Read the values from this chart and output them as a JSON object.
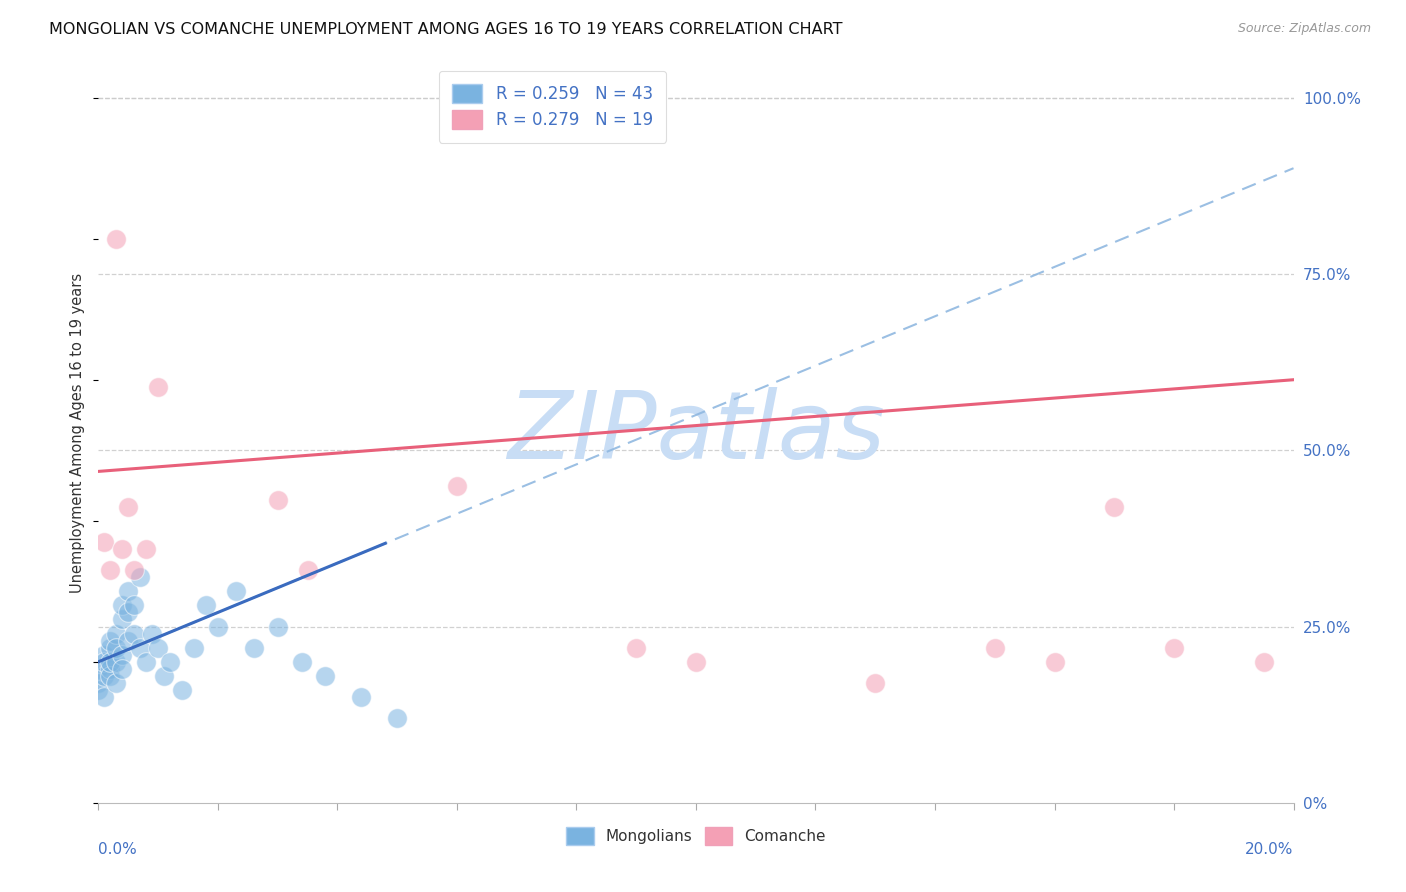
{
  "title": "MONGOLIAN VS COMANCHE UNEMPLOYMENT AMONG AGES 16 TO 19 YEARS CORRELATION CHART",
  "source": "Source: ZipAtlas.com",
  "ylabel": "Unemployment Among Ages 16 to 19 years",
  "right_yticks": [
    0.0,
    0.25,
    0.5,
    0.75,
    1.0
  ],
  "right_yticklabels": [
    "0%",
    "25.0%",
    "50.0%",
    "75.0%",
    "100.0%"
  ],
  "xlim": [
    0.0,
    0.2
  ],
  "ylim": [
    0.0,
    1.05
  ],
  "mongolian_color": "#7ab3e0",
  "comanche_color": "#f4a0b5",
  "mongolian_line_color": "#90b8e0",
  "comanche_line_color": "#e8607a",
  "blue_solid_color": "#3a6bbf",
  "background_color": "#ffffff",
  "grid_color": "#cccccc",
  "watermark_color": "#c8ddf5",
  "mongolian_x": [
    0.0,
    0.0,
    0.0,
    0.001,
    0.001,
    0.001,
    0.001,
    0.002,
    0.002,
    0.002,
    0.002,
    0.002,
    0.003,
    0.003,
    0.003,
    0.003,
    0.004,
    0.004,
    0.004,
    0.004,
    0.005,
    0.005,
    0.005,
    0.006,
    0.006,
    0.007,
    0.007,
    0.008,
    0.009,
    0.01,
    0.011,
    0.012,
    0.014,
    0.016,
    0.018,
    0.02,
    0.023,
    0.026,
    0.03,
    0.034,
    0.038,
    0.044,
    0.05
  ],
  "mongolian_y": [
    0.19,
    0.17,
    0.16,
    0.21,
    0.18,
    0.15,
    0.2,
    0.22,
    0.19,
    0.23,
    0.18,
    0.2,
    0.24,
    0.2,
    0.17,
    0.22,
    0.26,
    0.21,
    0.28,
    0.19,
    0.23,
    0.27,
    0.3,
    0.24,
    0.28,
    0.22,
    0.32,
    0.2,
    0.24,
    0.22,
    0.18,
    0.2,
    0.16,
    0.22,
    0.28,
    0.25,
    0.3,
    0.22,
    0.25,
    0.2,
    0.18,
    0.15,
    0.12
  ],
  "comanche_x": [
    0.001,
    0.002,
    0.003,
    0.004,
    0.005,
    0.006,
    0.008,
    0.01,
    0.03,
    0.035,
    0.06,
    0.09,
    0.1,
    0.13,
    0.15,
    0.16,
    0.17,
    0.18,
    0.195
  ],
  "comanche_y": [
    0.37,
    0.33,
    0.8,
    0.36,
    0.42,
    0.33,
    0.36,
    0.59,
    0.43,
    0.33,
    0.45,
    0.22,
    0.2,
    0.17,
    0.22,
    0.2,
    0.42,
    0.22,
    0.2
  ],
  "legend_R_mong": "R = 0.259",
  "legend_N_mong": "N = 43",
  "legend_R_com": "R = 0.279",
  "legend_N_com": "N = 19"
}
